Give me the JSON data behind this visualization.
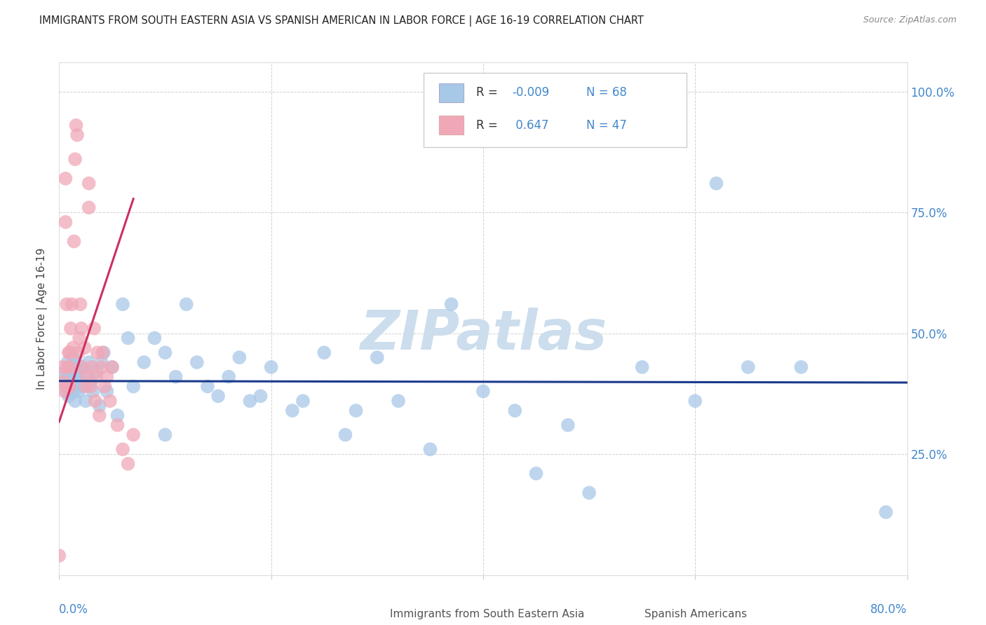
{
  "title": "IMMIGRANTS FROM SOUTH EASTERN ASIA VS SPANISH AMERICAN IN LABOR FORCE | AGE 16-19 CORRELATION CHART",
  "source": "Source: ZipAtlas.com",
  "ylabel": "In Labor Force | Age 16-19",
  "ytick_values": [
    0.0,
    0.25,
    0.5,
    0.75,
    1.0
  ],
  "ytick_labels": [
    "",
    "25.0%",
    "50.0%",
    "75.0%",
    "100.0%"
  ],
  "xlim": [
    0,
    0.8
  ],
  "ylim": [
    0.0,
    1.06
  ],
  "blue_color": "#a8c8e8",
  "blue_line_color": "#1a3a8b",
  "pink_color": "#f0a8b8",
  "pink_line_color": "#cc3060",
  "tick_color": "#4488cc",
  "watermark": "ZIPatlas",
  "watermark_color": "#ccdded",
  "blue_r": -0.009,
  "pink_r": 0.647,
  "blue_n": 68,
  "pink_n": 47,
  "blue_scatter_x": [
    0.003,
    0.005,
    0.007,
    0.008,
    0.008,
    0.009,
    0.01,
    0.01,
    0.012,
    0.013,
    0.014,
    0.015,
    0.015,
    0.016,
    0.017,
    0.018,
    0.02,
    0.02,
    0.022,
    0.025,
    0.025,
    0.028,
    0.03,
    0.032,
    0.035,
    0.038,
    0.04,
    0.042,
    0.045,
    0.05,
    0.055,
    0.06,
    0.065,
    0.07,
    0.08,
    0.09,
    0.1,
    0.1,
    0.11,
    0.12,
    0.13,
    0.14,
    0.15,
    0.16,
    0.17,
    0.18,
    0.19,
    0.2,
    0.22,
    0.23,
    0.25,
    0.27,
    0.28,
    0.3,
    0.32,
    0.35,
    0.37,
    0.4,
    0.43,
    0.45,
    0.48,
    0.5,
    0.55,
    0.6,
    0.62,
    0.65,
    0.7,
    0.78
  ],
  "blue_scatter_y": [
    0.4,
    0.42,
    0.38,
    0.41,
    0.44,
    0.37,
    0.39,
    0.43,
    0.4,
    0.45,
    0.38,
    0.42,
    0.36,
    0.44,
    0.41,
    0.38,
    0.4,
    0.43,
    0.39,
    0.42,
    0.36,
    0.44,
    0.4,
    0.38,
    0.42,
    0.35,
    0.44,
    0.46,
    0.38,
    0.43,
    0.33,
    0.56,
    0.49,
    0.39,
    0.44,
    0.49,
    0.46,
    0.29,
    0.41,
    0.56,
    0.44,
    0.39,
    0.37,
    0.41,
    0.45,
    0.36,
    0.37,
    0.43,
    0.34,
    0.36,
    0.46,
    0.29,
    0.34,
    0.45,
    0.36,
    0.26,
    0.56,
    0.38,
    0.34,
    0.21,
    0.31,
    0.17,
    0.43,
    0.36,
    0.81,
    0.43,
    0.43,
    0.13
  ],
  "pink_scatter_x": [
    0.0,
    0.003,
    0.004,
    0.005,
    0.006,
    0.006,
    0.007,
    0.008,
    0.008,
    0.009,
    0.01,
    0.01,
    0.01,
    0.011,
    0.012,
    0.013,
    0.014,
    0.015,
    0.016,
    0.017,
    0.018,
    0.019,
    0.02,
    0.021,
    0.022,
    0.024,
    0.025,
    0.026,
    0.028,
    0.028,
    0.03,
    0.031,
    0.033,
    0.034,
    0.035,
    0.036,
    0.038,
    0.04,
    0.041,
    0.043,
    0.045,
    0.048,
    0.05,
    0.055,
    0.06,
    0.065,
    0.07
  ],
  "pink_scatter_y": [
    0.04,
    0.43,
    0.4,
    0.38,
    0.73,
    0.82,
    0.56,
    0.43,
    0.39,
    0.46,
    0.43,
    0.39,
    0.46,
    0.51,
    0.56,
    0.47,
    0.69,
    0.86,
    0.93,
    0.91,
    0.46,
    0.49,
    0.56,
    0.51,
    0.43,
    0.47,
    0.39,
    0.41,
    0.76,
    0.81,
    0.39,
    0.43,
    0.51,
    0.36,
    0.41,
    0.46,
    0.33,
    0.43,
    0.46,
    0.39,
    0.41,
    0.36,
    0.43,
    0.31,
    0.26,
    0.23,
    0.29
  ]
}
